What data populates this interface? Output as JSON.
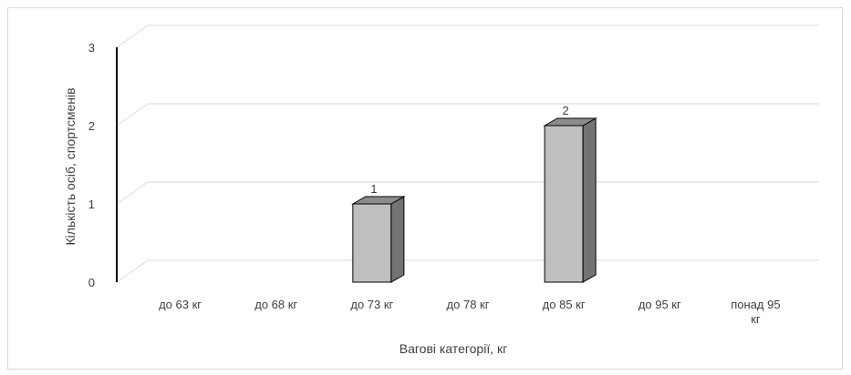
{
  "chart_data": {
    "type": "bar",
    "style": "3d-column",
    "title": "",
    "categories": [
      "до 63 кг",
      "до 68 кг",
      "до 73 кг",
      "до 78 кг",
      "до 85 кг",
      "до 95 кг",
      "понад 95 кг"
    ],
    "series": [
      {
        "values": [
          0,
          0,
          1,
          0,
          2,
          0,
          0
        ]
      }
    ],
    "data_labels": [
      "",
      "",
      "1",
      "",
      "2",
      "",
      ""
    ],
    "xlabel": "Вагові категорії, кг",
    "ylabel": "Кількість осіб, спортсменів",
    "ylim": [
      0,
      3
    ],
    "yticks": [
      "0",
      "1",
      "2",
      "3"
    ],
    "grid": true,
    "legend": "none",
    "colors": {
      "bar_front": "#bfbfbf",
      "bar_side": "#737373",
      "bar_top": "#8c8c8c",
      "bar_stroke": "#000000",
      "grid": "#d9d9d9",
      "axis": "#000000",
      "text": "#404040"
    }
  }
}
